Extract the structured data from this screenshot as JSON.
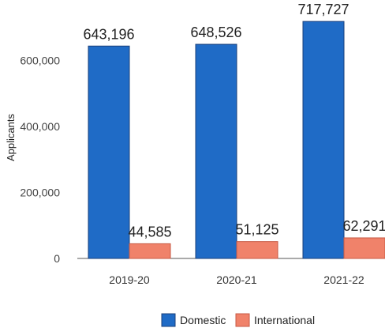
{
  "colors": {
    "domestic": "#1f6bc6",
    "international": "#f0826a",
    "domestic_stroke": "#1a3f7a",
    "international_stroke": "#c75a44",
    "axis": "#555555"
  },
  "chart_data": {
    "type": "bar",
    "categories": [
      "2019-20",
      "2020-21",
      "2021-22"
    ],
    "series": [
      {
        "name": "Domestic",
        "values": [
          643196,
          648526,
          717727
        ],
        "labels": [
          "643,196",
          "648,526",
          "717,727"
        ]
      },
      {
        "name": "International",
        "values": [
          44585,
          51125,
          62291
        ],
        "labels": [
          "44,585",
          "51,125",
          "62,291"
        ]
      }
    ],
    "ylabel": "Applicants",
    "ylim": [
      0,
      720000
    ],
    "yticks": [
      0,
      200000,
      400000,
      600000
    ],
    "ytick_labels": [
      "0",
      "200,000",
      "400,000",
      "600,000"
    ],
    "grid": false,
    "legend_position": "bottom"
  }
}
